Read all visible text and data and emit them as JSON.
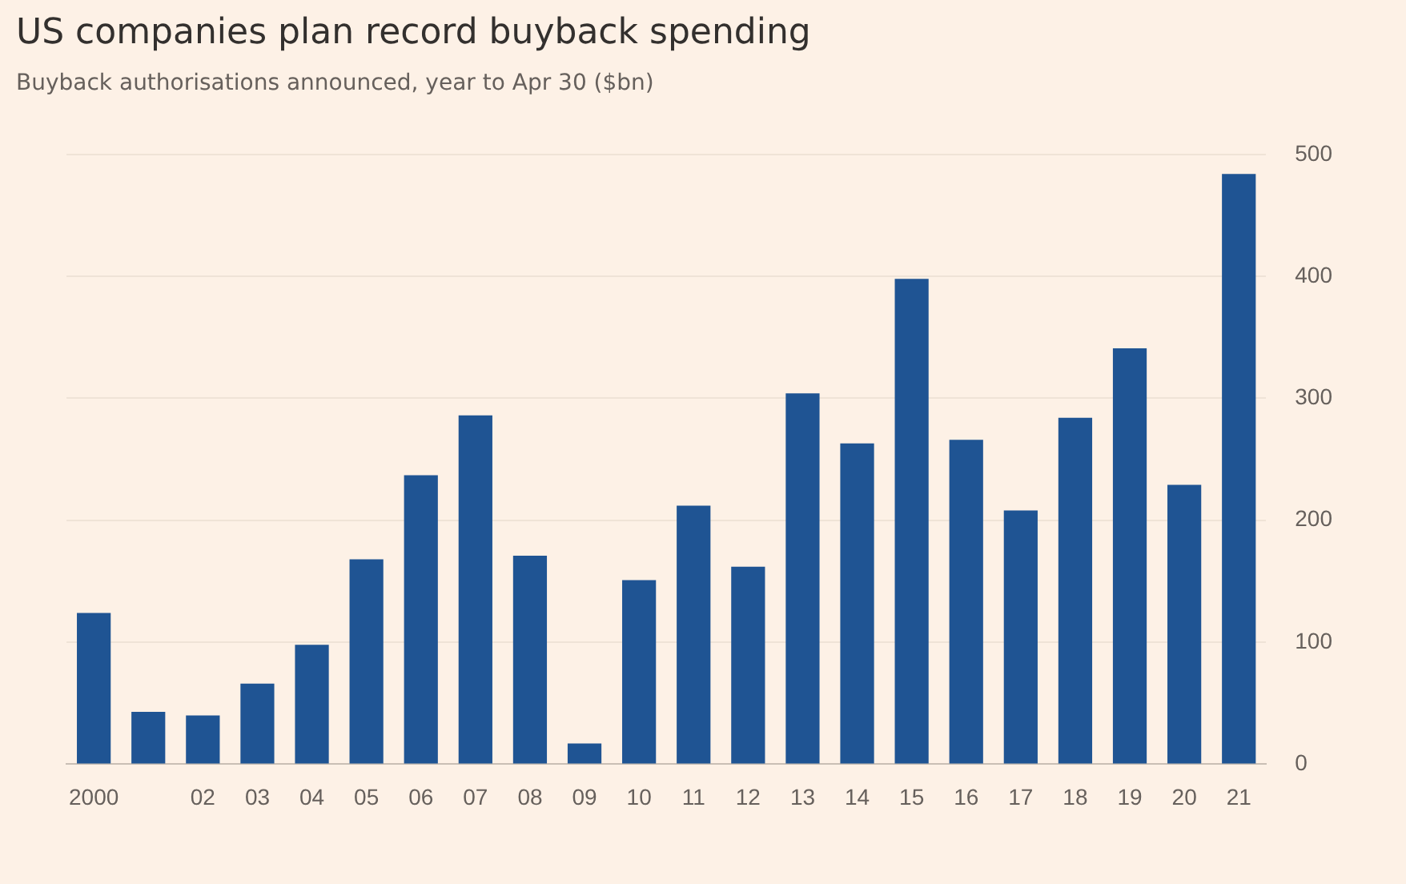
{
  "chart_data": {
    "type": "bar",
    "title": "US companies plan record buyback spending",
    "subtitle": "Buyback authorisations announced, year to Apr 30 ($bn)",
    "categories": [
      "2000",
      null,
      "02",
      "03",
      "04",
      "05",
      "06",
      "07",
      "08",
      "09",
      "10",
      "11",
      "12",
      "13",
      "14",
      "15",
      "16",
      "17",
      "18",
      "19",
      "20",
      "21"
    ],
    "values": [
      124,
      43,
      40,
      66,
      98,
      168,
      237,
      286,
      171,
      17,
      151,
      212,
      162,
      304,
      263,
      398,
      266,
      208,
      284,
      341,
      229,
      484
    ],
    "color": "#1f5493",
    "ylim": [
      0,
      500
    ],
    "yticks": [
      0,
      100,
      200,
      300,
      400,
      500
    ],
    "grid": "y",
    "legend": false
  }
}
